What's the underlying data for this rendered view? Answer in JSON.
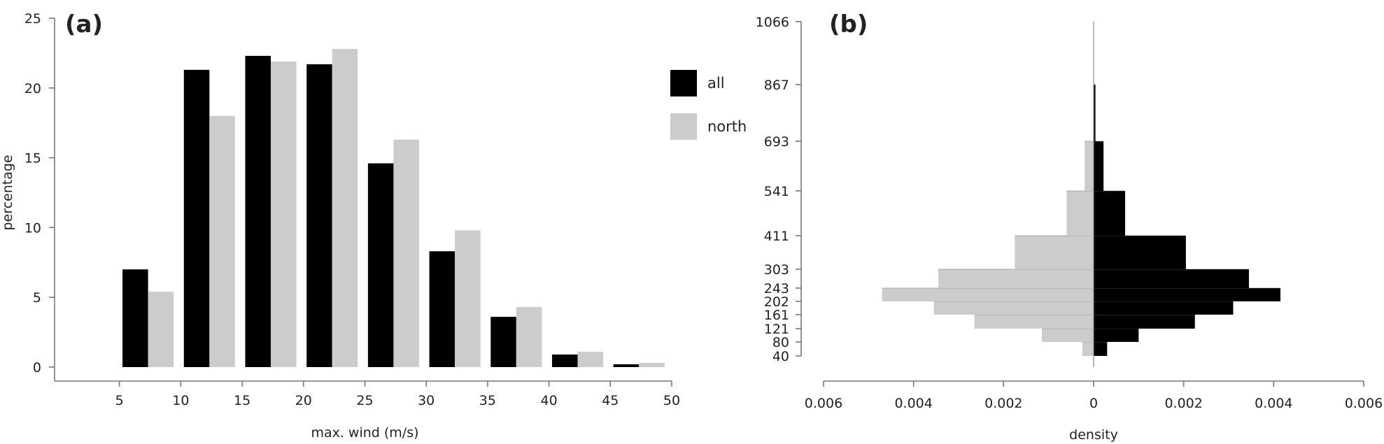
{
  "chart_data": [
    {
      "type": "bar",
      "panel_label": "(a)",
      "xlabel": "max. wind (m/s)",
      "ylabel": "percentage",
      "xlim": [
        0,
        50
      ],
      "ylim": [
        0,
        25
      ],
      "x_ticks": [
        5,
        10,
        15,
        20,
        25,
        30,
        35,
        40,
        45,
        50
      ],
      "y_ticks": [
        0,
        5,
        10,
        15,
        20,
        25
      ],
      "categories": [
        "5-10",
        "10-15",
        "15-20",
        "20-25",
        "25-30",
        "30-35",
        "35-40",
        "40-45",
        "45-50"
      ],
      "series": [
        {
          "name": "all",
          "color": "#000000",
          "values": [
            7.0,
            21.3,
            22.3,
            21.7,
            14.6,
            8.3,
            3.6,
            0.9,
            0.2
          ]
        },
        {
          "name": "north",
          "color": "#cccccc",
          "values": [
            5.4,
            18.0,
            21.9,
            22.8,
            16.3,
            9.8,
            4.3,
            1.1,
            0.3
          ]
        }
      ],
      "legend_position": "right",
      "grid": false
    },
    {
      "type": "bar",
      "panel_label": "(b)",
      "orientation": "horizontal-back-to-back",
      "xlabel": "density",
      "x_ticks": [
        -0.006,
        -0.004,
        -0.002,
        0,
        0.002,
        0.004,
        0.006
      ],
      "x_tick_labels": [
        "0.006",
        "0.004",
        "0.002",
        "0",
        "0.002",
        "0.004",
        "0.006"
      ],
      "xlim": [
        -0.006,
        0.006
      ],
      "y_scale": "nonlinear",
      "y_ticks": [
        40,
        80,
        121,
        161,
        202,
        243,
        303,
        411,
        541,
        693,
        867,
        1066
      ],
      "bins": [
        {
          "from": 40,
          "to": 80,
          "left": 0.00025,
          "right": 0.0003
        },
        {
          "from": 80,
          "to": 121,
          "left": 0.00115,
          "right": 0.001
        },
        {
          "from": 121,
          "to": 161,
          "left": 0.00265,
          "right": 0.00225
        },
        {
          "from": 161,
          "to": 202,
          "left": 0.00355,
          "right": 0.0031
        },
        {
          "from": 202,
          "to": 243,
          "left": 0.0047,
          "right": 0.00415
        },
        {
          "from": 243,
          "to": 303,
          "left": 0.00345,
          "right": 0.00345
        },
        {
          "from": 303,
          "to": 411,
          "left": 0.00175,
          "right": 0.00205
        },
        {
          "from": 411,
          "to": 541,
          "left": 0.0006,
          "right": 0.0007
        },
        {
          "from": 541,
          "to": 693,
          "left": 0.0002,
          "right": 0.00022
        },
        {
          "from": 693,
          "to": 867,
          "left": 0.0,
          "right": 4e-05
        }
      ],
      "left_color": "#cccccc",
      "right_color": "#000000",
      "grid": false
    }
  ]
}
